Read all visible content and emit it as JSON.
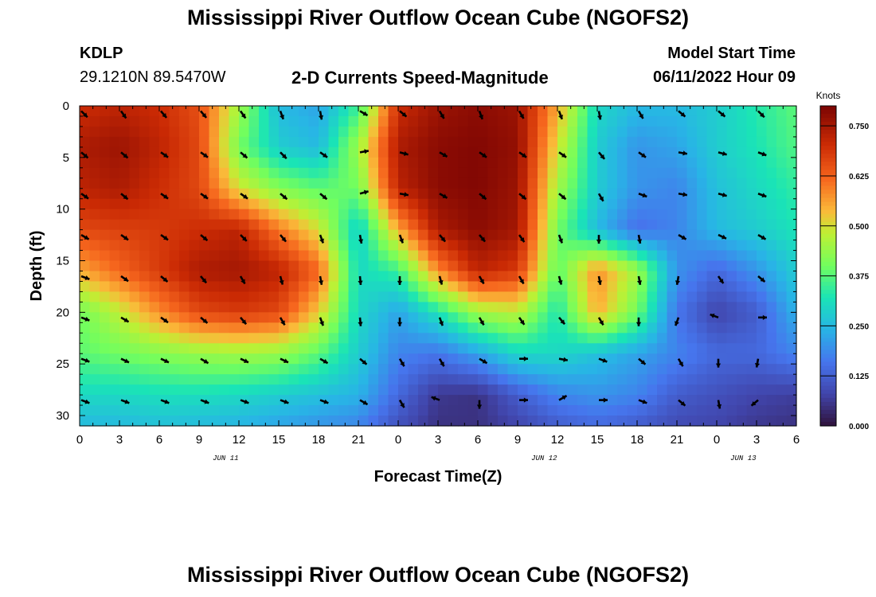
{
  "page": {
    "title": "Mississippi River Outflow Ocean Cube (NGOFS2)",
    "title_repeat": "Mississippi River Outflow Ocean Cube (NGOFS2)",
    "station": "KDLP",
    "coords": "29.1210N  89.5470W",
    "subtitle": "2-D Currents Speed-Magnitude",
    "model_start_label": "Model Start Time",
    "model_start_value": "06/11/2022 Hour 09"
  },
  "chart_data": {
    "type": "heatmap",
    "title": "2-D Currents Speed-Magnitude",
    "xlabel": "Forecast Time(Z)",
    "ylabel": "Depth (ft)",
    "x_tick_labels": [
      "0",
      "3",
      "6",
      "9",
      "12",
      "15",
      "18",
      "21",
      "0",
      "3",
      "6",
      "9",
      "12",
      "15",
      "18",
      "21",
      "0",
      "3",
      "6"
    ],
    "x_range_hours": [
      0,
      54
    ],
    "date_labels": [
      {
        "label": "JUN 11",
        "hour": 11
      },
      {
        "label": "JUN 12",
        "hour": 35
      },
      {
        "label": "JUN 13",
        "hour": 50
      }
    ],
    "y_ticks": [
      0,
      5,
      10,
      15,
      20,
      25,
      30
    ],
    "ylim": [
      0,
      31
    ],
    "y_inverted": true,
    "colorbar": {
      "unit_label": "Knots",
      "ticks": [
        "0.750",
        "0.625",
        "0.500",
        "0.375",
        "0.250",
        "0.125",
        "0.000"
      ],
      "range": [
        0.0,
        0.8
      ]
    },
    "arrow_times_hours": [
      0,
      3,
      6,
      9,
      12,
      15,
      18,
      21,
      24,
      27,
      30,
      33,
      36,
      39,
      42,
      45,
      48,
      51
    ],
    "arrow_depths_ft": [
      0.5,
      4.5,
      8.5,
      12.5,
      16.5,
      20.5,
      24.5,
      28.5
    ],
    "speed_grid_note": "rows = depths 0,4,8,12,16,20,24,28,31 ft; cols = hours 0..54 step 3",
    "speed_grid": [
      [
        0.7,
        0.72,
        0.7,
        0.65,
        0.45,
        0.25,
        0.22,
        0.35,
        0.7,
        0.76,
        0.78,
        0.76,
        0.55,
        0.3,
        0.25,
        0.25,
        0.28,
        0.33,
        0.38
      ],
      [
        0.74,
        0.76,
        0.72,
        0.66,
        0.4,
        0.28,
        0.25,
        0.45,
        0.74,
        0.78,
        0.79,
        0.77,
        0.5,
        0.28,
        0.2,
        0.22,
        0.28,
        0.32,
        0.37
      ],
      [
        0.72,
        0.74,
        0.7,
        0.66,
        0.5,
        0.42,
        0.38,
        0.4,
        0.72,
        0.78,
        0.79,
        0.76,
        0.45,
        0.28,
        0.2,
        0.18,
        0.26,
        0.3,
        0.34
      ],
      [
        0.66,
        0.67,
        0.68,
        0.7,
        0.72,
        0.6,
        0.5,
        0.28,
        0.55,
        0.74,
        0.78,
        0.75,
        0.4,
        0.25,
        0.15,
        0.18,
        0.25,
        0.28,
        0.32
      ],
      [
        0.55,
        0.62,
        0.68,
        0.74,
        0.75,
        0.72,
        0.62,
        0.3,
        0.35,
        0.58,
        0.72,
        0.68,
        0.38,
        0.58,
        0.45,
        0.2,
        0.14,
        0.2,
        0.28
      ],
      [
        0.4,
        0.48,
        0.58,
        0.66,
        0.68,
        0.66,
        0.52,
        0.3,
        0.22,
        0.32,
        0.45,
        0.48,
        0.32,
        0.55,
        0.4,
        0.16,
        0.08,
        0.12,
        0.24
      ],
      [
        0.38,
        0.4,
        0.42,
        0.44,
        0.45,
        0.44,
        0.38,
        0.28,
        0.18,
        0.16,
        0.22,
        0.3,
        0.3,
        0.26,
        0.22,
        0.18,
        0.14,
        0.14,
        0.18
      ],
      [
        0.3,
        0.3,
        0.31,
        0.31,
        0.3,
        0.28,
        0.26,
        0.24,
        0.14,
        0.06,
        0.05,
        0.12,
        0.18,
        0.2,
        0.18,
        0.12,
        0.1,
        0.08,
        0.07
      ],
      [
        0.25,
        0.25,
        0.26,
        0.25,
        0.24,
        0.22,
        0.2,
        0.18,
        0.1,
        0.05,
        0.05,
        0.08,
        0.12,
        0.14,
        0.12,
        0.09,
        0.08,
        0.06,
        0.05
      ]
    ],
    "direction_grid_deg_note": "screen angle, 0 = east, positive = clockwise (down)",
    "direction_grid_deg": [
      [
        45,
        55,
        50,
        50,
        55,
        70,
        80,
        30,
        40,
        60,
        70,
        60,
        70,
        80,
        60,
        40,
        40,
        45
      ],
      [
        40,
        40,
        35,
        35,
        40,
        45,
        35,
        -10,
        15,
        30,
        35,
        35,
        35,
        50,
        35,
        10,
        15,
        20
      ],
      [
        35,
        40,
        35,
        35,
        35,
        40,
        40,
        -15,
        10,
        30,
        40,
        40,
        40,
        60,
        20,
        10,
        15,
        20
      ],
      [
        30,
        35,
        35,
        40,
        45,
        50,
        70,
        80,
        70,
        50,
        50,
        55,
        70,
        90,
        80,
        30,
        25,
        30
      ],
      [
        20,
        35,
        40,
        50,
        60,
        75,
        80,
        85,
        90,
        75,
        60,
        60,
        75,
        80,
        80,
        100,
        55,
        40
      ],
      [
        20,
        30,
        35,
        40,
        50,
        60,
        70,
        85,
        90,
        70,
        60,
        55,
        50,
        60,
        90,
        110,
        200,
        0
      ],
      [
        20,
        25,
        25,
        30,
        25,
        25,
        30,
        40,
        60,
        60,
        30,
        0,
        10,
        20,
        40,
        60,
        90,
        100
      ],
      [
        20,
        20,
        20,
        20,
        20,
        20,
        20,
        30,
        60,
        200,
        90,
        0,
        -30,
        0,
        20,
        40,
        80,
        140
      ]
    ]
  }
}
